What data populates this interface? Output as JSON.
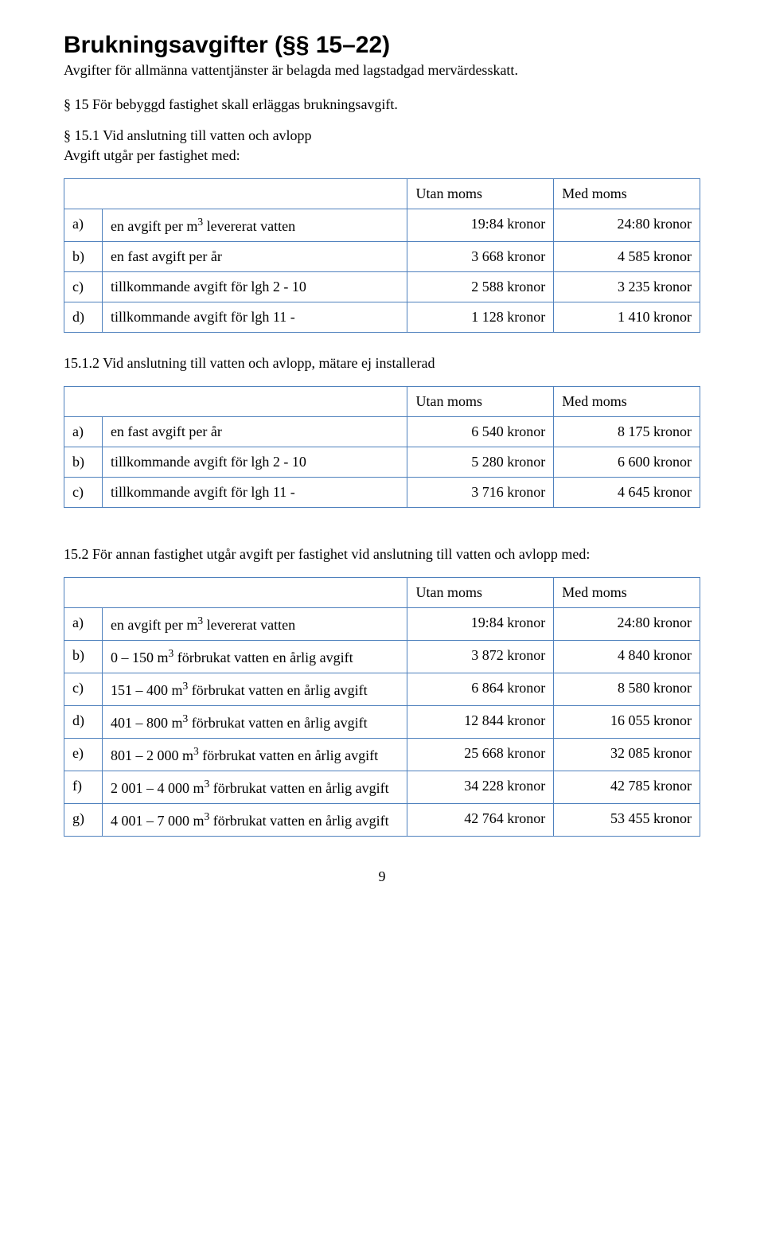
{
  "heading": "Brukningsavgifter (§§ 15–22)",
  "intro": "Avgifter för allmänna vattentjänster är belagda med lagstadgad mervärdesskatt.",
  "section15": "§ 15 För bebyggd fastighet skall erläggas brukningsavgift.",
  "section15_1_title": "§ 15.1  Vid anslutning till vatten och avlopp",
  "section15_1_sub": "Avgift utgår per fastighet med:",
  "colUtan": "Utan moms",
  "colMed": "Med moms",
  "t1": {
    "rows": [
      {
        "k": "a)",
        "desc": "en avgift per m³ levererat vatten",
        "u": "19:84 kronor",
        "m": "24:80 kronor"
      },
      {
        "k": "b)",
        "desc": "en fast avgift per år",
        "u": "3 668 kronor",
        "m": "4 585 kronor"
      },
      {
        "k": "c)",
        "desc": "tillkommande avgift för lgh 2 - 10",
        "u": "2 588 kronor",
        "m": "3 235 kronor"
      },
      {
        "k": "d)",
        "desc": "tillkommande avgift för lgh 11 -",
        "u": "1 128 kronor",
        "m": "1 410 kronor"
      }
    ]
  },
  "section15_1_2": "15.1.2 Vid anslutning till vatten och avlopp, mätare ej installerad",
  "t2": {
    "rows": [
      {
        "k": "a)",
        "desc": "en fast avgift per år",
        "u": "6 540 kronor",
        "m": "8 175 kronor"
      },
      {
        "k": "b)",
        "desc": "tillkommande avgift för lgh 2 - 10",
        "u": "5 280 kronor",
        "m": "6 600 kronor"
      },
      {
        "k": "c)",
        "desc": "tillkommande avgift för lgh 11 -",
        "u": "3 716 kronor",
        "m": "4 645 kronor"
      }
    ]
  },
  "section15_2": "15.2 För annan fastighet utgår avgift per fastighet vid anslutning till vatten och avlopp med:",
  "t3": {
    "rows": [
      {
        "k": "a)",
        "desc": "en avgift per m³ levererat vatten",
        "u": "19:84 kronor",
        "m": "24:80 kronor"
      },
      {
        "k": "b)",
        "desc": "0 – 150 m³ förbrukat vatten en årlig avgift",
        "u": "3 872 kronor",
        "m": "4 840 kronor"
      },
      {
        "k": "c)",
        "desc": "151 – 400 m³ förbrukat vatten en årlig avgift",
        "u": "6 864 kronor",
        "m": "8 580 kronor"
      },
      {
        "k": "d)",
        "desc": "401 – 800 m³ förbrukat vatten en årlig avgift",
        "u": "12 844 kronor",
        "m": "16 055 kronor"
      },
      {
        "k": "e)",
        "desc": "801 – 2 000 m³ förbrukat vatten en årlig avgift",
        "u": "25 668 kronor",
        "m": "32 085 kronor"
      },
      {
        "k": "f)",
        "desc": "2 001 – 4 000 m³ förbrukat vatten en årlig avgift",
        "u": "34 228 kronor",
        "m": "42 785 kronor"
      },
      {
        "k": "g)",
        "desc": "4 001 – 7 000 m³ förbrukat vatten en årlig avgift",
        "u": "42 764 kronor",
        "m": "53 455 kronor"
      }
    ]
  },
  "pageNumber": "9",
  "colors": {
    "border": "#4f81bd",
    "text": "#000000",
    "bg": "#ffffff"
  },
  "fonts": {
    "heading_family": "Arial",
    "body_family": "Times New Roman",
    "heading_size_pt": 22,
    "body_size_pt": 13
  }
}
